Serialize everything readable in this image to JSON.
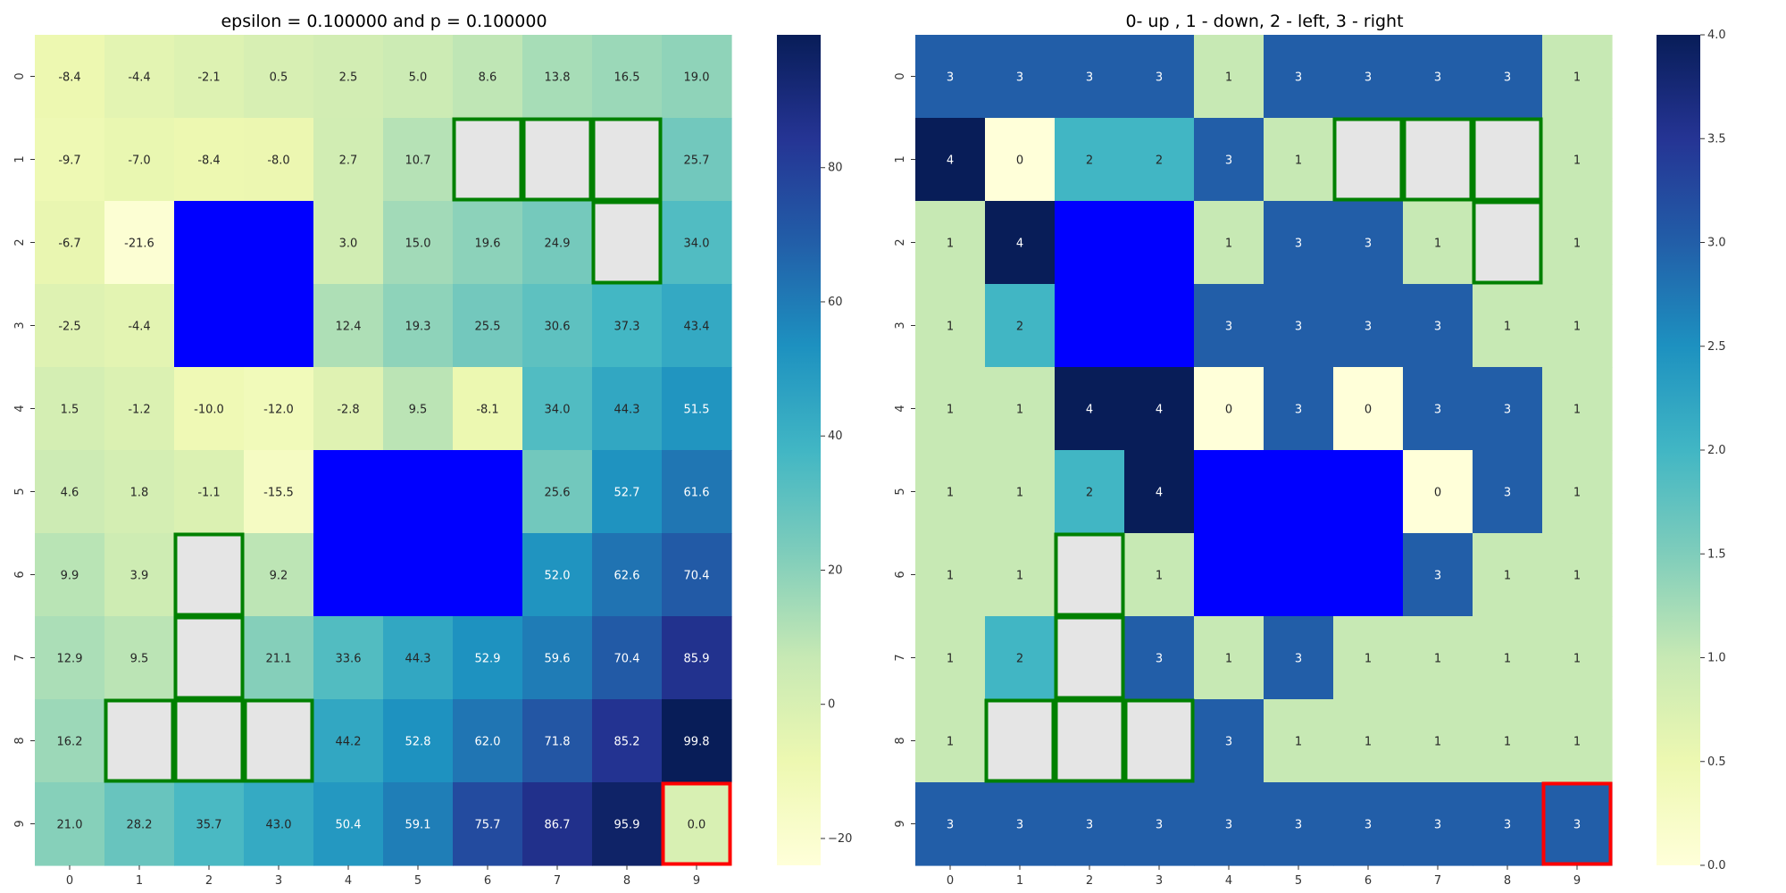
{
  "chart_data": [
    {
      "type": "heatmap",
      "title": "epsilon = 0.100000 and p = 0.100000",
      "x": [
        "0",
        "1",
        "2",
        "3",
        "4",
        "5",
        "6",
        "7",
        "8",
        "9"
      ],
      "y": [
        "0",
        "1",
        "2",
        "3",
        "4",
        "5",
        "6",
        "7",
        "8",
        "9"
      ],
      "cmap": "YlGnBu",
      "vmin": -24,
      "vmax": 99.8,
      "colorbar_ticks": [
        -20,
        0,
        20,
        40,
        60,
        80
      ],
      "colorbar_tick_labels": [
        "−20",
        "0",
        "20",
        "40",
        "60",
        "80"
      ],
      "values": [
        [
          -8.4,
          -4.4,
          -2.1,
          0.5,
          2.5,
          5.0,
          8.6,
          13.8,
          16.5,
          19.0
        ],
        [
          -9.7,
          -7.0,
          -8.4,
          -8.0,
          2.7,
          10.7,
          null,
          null,
          null,
          25.7
        ],
        [
          -6.7,
          -21.6,
          null,
          null,
          3.0,
          15.0,
          19.6,
          24.9,
          null,
          34.0
        ],
        [
          -2.5,
          -4.4,
          null,
          null,
          12.4,
          19.3,
          25.5,
          30.6,
          37.3,
          43.4
        ],
        [
          1.5,
          -1.2,
          -10.0,
          -12.0,
          -2.8,
          9.5,
          -8.1,
          34.0,
          44.3,
          51.5
        ],
        [
          4.6,
          1.8,
          -1.1,
          -15.5,
          null,
          null,
          null,
          25.6,
          52.7,
          61.6
        ],
        [
          9.9,
          3.9,
          null,
          9.2,
          null,
          null,
          null,
          52.0,
          62.6,
          70.4
        ],
        [
          12.9,
          9.5,
          null,
          21.1,
          33.6,
          44.3,
          52.9,
          59.6,
          70.4,
          85.9
        ],
        [
          16.2,
          null,
          null,
          null,
          44.2,
          52.8,
          62.0,
          71.8,
          85.2,
          99.8
        ],
        [
          21.0,
          28.2,
          35.7,
          43.0,
          50.4,
          59.1,
          75.7,
          86.7,
          95.9,
          0.0
        ]
      ],
      "cell_labels": [
        [
          "-8.4",
          "-4.4",
          "-2.1",
          "0.5",
          "2.5",
          "5.0",
          "8.6",
          "13.8",
          "16.5",
          "19.0"
        ],
        [
          "-9.7",
          "-7.0",
          "-8.4",
          "-8.0",
          "2.7",
          "10.7",
          null,
          null,
          null,
          "25.7"
        ],
        [
          "-6.7",
          "-21.6",
          null,
          null,
          "3.0",
          "15.0",
          "19.6",
          "24.9",
          null,
          "34.0"
        ],
        [
          "-2.5",
          "-4.4",
          null,
          null,
          "12.4",
          "19.3",
          "25.5",
          "30.6",
          "37.3",
          "43.4"
        ],
        [
          "1.5",
          "-1.2",
          "-10.0",
          "-12.0",
          "-2.8",
          "9.5",
          "-8.1",
          "34.0",
          "44.3",
          "51.5"
        ],
        [
          "4.6",
          "1.8",
          "-1.1",
          "-15.5",
          null,
          null,
          null,
          "25.6",
          "52.7",
          "61.6"
        ],
        [
          "9.9",
          "3.9",
          null,
          "9.2",
          null,
          null,
          null,
          "52.0",
          "62.6",
          "70.4"
        ],
        [
          "12.9",
          "9.5",
          null,
          "21.1",
          "33.6",
          "44.3",
          "52.9",
          "59.6",
          "70.4",
          "85.9"
        ],
        [
          "16.2",
          null,
          null,
          null,
          "44.2",
          "52.8",
          "62.0",
          "71.8",
          "85.2",
          "99.8"
        ],
        [
          "21.0",
          "28.2",
          "35.7",
          "43.0",
          "50.4",
          "59.1",
          "75.7",
          "86.7",
          "95.9",
          "0.0"
        ]
      ],
      "obstacle_color": "#0000ff",
      "obstacle_cells": [
        [
          2,
          2
        ],
        [
          2,
          3
        ],
        [
          3,
          2
        ],
        [
          3,
          3
        ],
        [
          5,
          4
        ],
        [
          5,
          5
        ],
        [
          5,
          6
        ],
        [
          6,
          4
        ],
        [
          6,
          5
        ],
        [
          6,
          6
        ]
      ],
      "highlight_fill": "#e5e5e5",
      "highlight_edge": "#008000",
      "highlight_cells": [
        [
          1,
          6
        ],
        [
          1,
          7
        ],
        [
          1,
          8
        ],
        [
          2,
          8
        ],
        [
          6,
          2
        ],
        [
          7,
          2
        ],
        [
          8,
          1
        ],
        [
          8,
          2
        ],
        [
          8,
          3
        ]
      ],
      "goal_edge": "#ff0000",
      "goal_cell": [
        9,
        9
      ]
    },
    {
      "type": "heatmap",
      "title": "0- up , 1 - down, 2 - left, 3 - right",
      "x": [
        "0",
        "1",
        "2",
        "3",
        "4",
        "5",
        "6",
        "7",
        "8",
        "9"
      ],
      "y": [
        "0",
        "1",
        "2",
        "3",
        "4",
        "5",
        "6",
        "7",
        "8",
        "9"
      ],
      "cmap": "YlGnBu",
      "vmin": 0,
      "vmax": 4,
      "colorbar_ticks": [
        0,
        0.5,
        1,
        1.5,
        2,
        2.5,
        3,
        3.5,
        4
      ],
      "colorbar_tick_labels": [
        "0.0",
        "0.5",
        "1.0",
        "1.5",
        "2.0",
        "2.5",
        "3.0",
        "3.5",
        "4.0"
      ],
      "values": [
        [
          3,
          3,
          3,
          3,
          1,
          3,
          3,
          3,
          3,
          1
        ],
        [
          4,
          0,
          2,
          2,
          3,
          1,
          null,
          null,
          null,
          1
        ],
        [
          1,
          4,
          null,
          null,
          1,
          3,
          3,
          1,
          null,
          1
        ],
        [
          1,
          2,
          null,
          null,
          3,
          3,
          3,
          3,
          1,
          1
        ],
        [
          1,
          1,
          4,
          4,
          0,
          3,
          0,
          3,
          3,
          1
        ],
        [
          1,
          1,
          2,
          4,
          null,
          null,
          null,
          0,
          3,
          1
        ],
        [
          1,
          1,
          null,
          1,
          null,
          null,
          null,
          3,
          1,
          1
        ],
        [
          1,
          2,
          null,
          3,
          1,
          3,
          1,
          1,
          1,
          1
        ],
        [
          1,
          null,
          null,
          null,
          3,
          1,
          1,
          1,
          1,
          1
        ],
        [
          3,
          3,
          3,
          3,
          3,
          3,
          3,
          3,
          3,
          3
        ]
      ],
      "cell_labels": [
        [
          "3",
          "3",
          "3",
          "3",
          "1",
          "3",
          "3",
          "3",
          "3",
          "1"
        ],
        [
          "4",
          "0",
          "2",
          "2",
          "3",
          "1",
          null,
          null,
          null,
          "1"
        ],
        [
          "1",
          "4",
          null,
          null,
          "1",
          "3",
          "3",
          "1",
          null,
          "1"
        ],
        [
          "1",
          "2",
          null,
          null,
          "3",
          "3",
          "3",
          "3",
          "1",
          "1"
        ],
        [
          "1",
          "1",
          "4",
          "4",
          "0",
          "3",
          "0",
          "3",
          "3",
          "1"
        ],
        [
          "1",
          "1",
          "2",
          "4",
          null,
          null,
          null,
          "0",
          "3",
          "1"
        ],
        [
          "1",
          "1",
          null,
          "1",
          null,
          null,
          null,
          "3",
          "1",
          "1"
        ],
        [
          "1",
          "2",
          null,
          "3",
          "1",
          "3",
          "1",
          "1",
          "1",
          "1"
        ],
        [
          "1",
          null,
          null,
          null,
          "3",
          "1",
          "1",
          "1",
          "1",
          "1"
        ],
        [
          "3",
          "3",
          "3",
          "3",
          "3",
          "3",
          "3",
          "3",
          "3",
          "3"
        ]
      ],
      "obstacle_color": "#0000ff",
      "obstacle_cells": [
        [
          2,
          2
        ],
        [
          2,
          3
        ],
        [
          3,
          2
        ],
        [
          3,
          3
        ],
        [
          5,
          4
        ],
        [
          5,
          5
        ],
        [
          5,
          6
        ],
        [
          6,
          4
        ],
        [
          6,
          5
        ],
        [
          6,
          6
        ]
      ],
      "highlight_fill": "#e5e5e5",
      "highlight_edge": "#008000",
      "highlight_cells": [
        [
          1,
          6
        ],
        [
          1,
          7
        ],
        [
          1,
          8
        ],
        [
          2,
          8
        ],
        [
          6,
          2
        ],
        [
          7,
          2
        ],
        [
          8,
          1
        ],
        [
          8,
          2
        ],
        [
          8,
          3
        ]
      ],
      "goal_edge": "#ff0000",
      "goal_cell": [
        9,
        9
      ]
    }
  ]
}
